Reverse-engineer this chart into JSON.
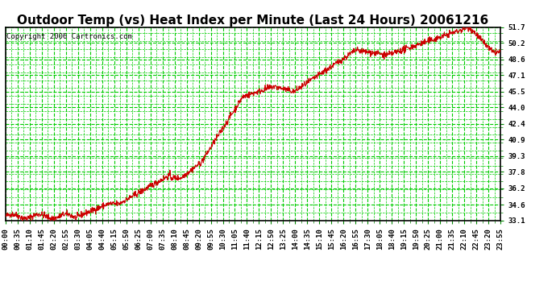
{
  "title": "Outdoor Temp (vs) Heat Index per Minute (Last 24 Hours) 20061216",
  "copyright": "Copyright 2006 Cartronics.com",
  "background_color": "#ffffff",
  "plot_bg_color": "#ffffff",
  "grid_color": "#00cc00",
  "line_color": "#cc0000",
  "yticks": [
    33.1,
    34.6,
    36.2,
    37.8,
    39.3,
    40.9,
    42.4,
    44.0,
    45.5,
    47.1,
    48.6,
    50.2,
    51.7
  ],
  "ymin": 33.1,
  "ymax": 51.7,
  "xtick_labels": [
    "00:00",
    "00:35",
    "01:10",
    "01:45",
    "02:20",
    "02:55",
    "03:30",
    "04:05",
    "04:40",
    "05:15",
    "05:50",
    "06:25",
    "07:00",
    "07:35",
    "08:10",
    "08:45",
    "09:20",
    "09:55",
    "10:30",
    "11:05",
    "11:40",
    "12:15",
    "12:50",
    "13:25",
    "14:00",
    "14:35",
    "15:10",
    "15:45",
    "16:20",
    "16:55",
    "17:30",
    "18:05",
    "18:40",
    "19:15",
    "19:50",
    "20:25",
    "21:00",
    "21:35",
    "22:10",
    "22:45",
    "23:20",
    "23:55"
  ],
  "title_fontsize": 11,
  "tick_fontsize": 6.5,
  "copyright_fontsize": 6.5
}
